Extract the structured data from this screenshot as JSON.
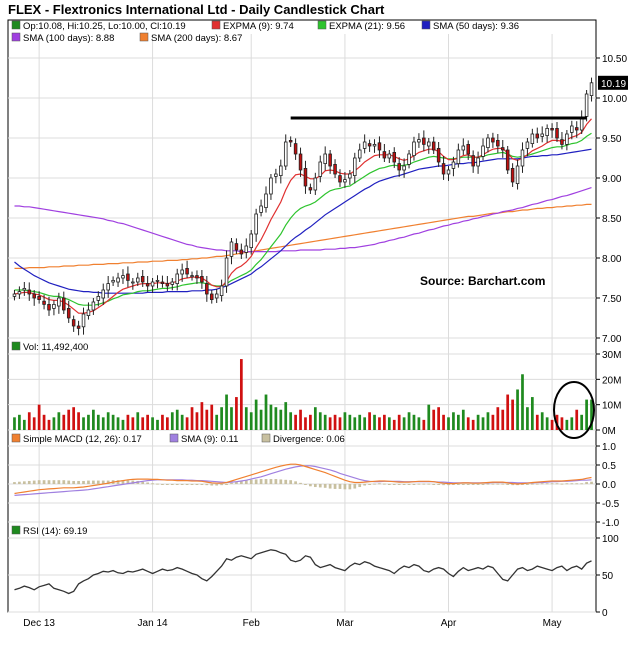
{
  "title": "FLEX - Flextronics International Ltd - Daily Candlestick Chart",
  "source_note": "Source:  Barchart.com",
  "legend_price": [
    {
      "label": "Op:10.08, Hi:10.25, Lo:10.00, Cl:10.19",
      "color": "#1f8a1f"
    },
    {
      "label": "EXPMA (9): 9.74",
      "color": "#e03030"
    },
    {
      "label": "EXPMA (21): 9.56",
      "color": "#2ec42e"
    },
    {
      "label": "SMA (50 days): 9.36",
      "color": "#2020c0"
    },
    {
      "label": "SMA (100 days): 8.88",
      "color": "#a040e0"
    },
    {
      "label": "SMA (200 days): 8.67",
      "color": "#f08030"
    }
  ],
  "legend_volume": {
    "label": "Vol: 11,492,400",
    "color": "#1f8a1f"
  },
  "legend_macd": [
    {
      "label": "Simple MACD (12, 26): 0.17",
      "color": "#f08030"
    },
    {
      "label": "SMA (9): 0.11",
      "color": "#a080e0"
    },
    {
      "label": "Divergence: 0.06",
      "color": "#c8c0a0"
    }
  ],
  "legend_rsi": {
    "label": "RSI (14): 69.19",
    "color": "#1f8a1f"
  },
  "price_ticks": [
    "10.50",
    "10.00",
    "9.50",
    "9.00",
    "8.50",
    "8.00",
    "7.50",
    "7.00"
  ],
  "volume_ticks": [
    "30M",
    "20M",
    "10M",
    "0M"
  ],
  "macd_ticks": [
    "1.0",
    "0.5",
    "0.0",
    "-0.5",
    "-1.0"
  ],
  "rsi_ticks": [
    "100",
    "50",
    "0"
  ],
  "last_price_tag": "10.19",
  "x_labels": [
    "Dec 13",
    "Jan 14",
    "Feb",
    "Mar",
    "Apr",
    "May"
  ],
  "chart_data": {
    "type": "candlestick",
    "n_bars": 118,
    "price_ylim": [
      7.0,
      10.75
    ],
    "resistance_level": 9.75,
    "close": [
      7.55,
      7.58,
      7.62,
      7.55,
      7.5,
      7.48,
      7.42,
      7.35,
      7.42,
      7.5,
      7.35,
      7.25,
      7.15,
      7.12,
      7.3,
      7.35,
      7.45,
      7.52,
      7.6,
      7.68,
      7.72,
      7.75,
      7.78,
      7.72,
      7.7,
      7.75,
      7.7,
      7.65,
      7.7,
      7.72,
      7.68,
      7.65,
      7.7,
      7.8,
      7.85,
      7.8,
      7.78,
      7.75,
      7.7,
      7.55,
      7.48,
      7.55,
      7.65,
      8.0,
      8.2,
      8.1,
      8.05,
      8.15,
      8.3,
      8.55,
      8.65,
      8.8,
      9.0,
      9.05,
      9.15,
      9.45,
      9.45,
      9.3,
      9.1,
      8.9,
      8.85,
      9.0,
      9.2,
      9.3,
      9.15,
      9.05,
      8.95,
      8.98,
      9.05,
      9.25,
      9.35,
      9.45,
      9.4,
      9.42,
      9.35,
      9.25,
      9.3,
      9.2,
      9.1,
      9.15,
      9.3,
      9.45,
      9.48,
      9.42,
      9.45,
      9.35,
      9.2,
      9.05,
      9.1,
      9.2,
      9.35,
      9.4,
      9.3,
      9.15,
      9.25,
      9.4,
      9.5,
      9.45,
      9.4,
      9.35,
      9.1,
      8.95,
      9.15,
      9.35,
      9.45,
      9.55,
      9.5,
      9.55,
      9.62,
      9.6,
      9.5,
      9.42,
      9.55,
      9.65,
      9.6,
      9.75,
      10.05,
      10.19
    ],
    "ema9": [
      7.55,
      7.56,
      7.57,
      7.57,
      7.55,
      7.54,
      7.51,
      7.48,
      7.47,
      7.47,
      7.45,
      7.41,
      7.36,
      7.31,
      7.31,
      7.32,
      7.34,
      7.38,
      7.42,
      7.47,
      7.52,
      7.57,
      7.61,
      7.63,
      7.65,
      7.67,
      7.68,
      7.68,
      7.68,
      7.69,
      7.69,
      7.68,
      7.69,
      7.71,
      7.74,
      7.75,
      7.76,
      7.76,
      7.75,
      7.71,
      7.66,
      7.64,
      7.64,
      7.71,
      7.81,
      7.87,
      7.9,
      7.95,
      8.02,
      8.13,
      8.23,
      8.35,
      8.48,
      8.59,
      8.7,
      8.85,
      8.97,
      9.04,
      9.05,
      9.02,
      8.99,
      8.99,
      9.03,
      9.09,
      9.1,
      9.09,
      9.06,
      9.05,
      9.05,
      9.09,
      9.14,
      9.2,
      9.24,
      9.28,
      9.29,
      9.29,
      9.29,
      9.27,
      9.24,
      9.22,
      9.24,
      9.28,
      9.32,
      9.34,
      9.36,
      9.36,
      9.33,
      9.27,
      9.23,
      9.23,
      9.25,
      9.28,
      9.29,
      9.26,
      9.26,
      9.29,
      9.33,
      9.36,
      9.37,
      9.37,
      9.31,
      9.24,
      9.22,
      9.25,
      9.29,
      9.34,
      9.37,
      9.4,
      9.44,
      9.47,
      9.47,
      9.46,
      9.48,
      9.51,
      9.53,
      9.57,
      9.67,
      9.74
    ],
    "ema21": [
      7.6,
      7.6,
      7.6,
      7.59,
      7.58,
      7.57,
      7.55,
      7.53,
      7.52,
      7.52,
      7.5,
      7.48,
      7.45,
      7.42,
      7.41,
      7.41,
      7.41,
      7.42,
      7.44,
      7.46,
      7.49,
      7.51,
      7.54,
      7.55,
      7.56,
      7.58,
      7.59,
      7.59,
      7.6,
      7.61,
      7.62,
      7.62,
      7.63,
      7.64,
      7.66,
      7.67,
      7.68,
      7.69,
      7.69,
      7.68,
      7.66,
      7.65,
      7.65,
      7.68,
      7.72,
      7.75,
      7.78,
      7.81,
      7.85,
      7.92,
      7.98,
      8.06,
      8.14,
      8.22,
      8.3,
      8.41,
      8.5,
      8.57,
      8.62,
      8.65,
      8.67,
      8.7,
      8.75,
      8.8,
      8.84,
      8.86,
      8.87,
      8.89,
      8.9,
      8.94,
      8.98,
      9.02,
      9.06,
      9.09,
      9.12,
      9.13,
      9.15,
      9.16,
      9.15,
      9.16,
      9.17,
      9.2,
      9.22,
      9.24,
      9.26,
      9.27,
      9.26,
      9.25,
      9.24,
      9.24,
      9.25,
      9.26,
      9.26,
      9.26,
      9.26,
      9.27,
      9.29,
      9.3,
      9.31,
      9.32,
      9.3,
      9.27,
      9.26,
      9.27,
      9.28,
      9.3,
      9.32,
      9.34,
      9.36,
      9.38,
      9.39,
      9.39,
      9.41,
      9.43,
      9.44,
      9.47,
      9.52,
      9.56
    ],
    "sma50": [
      7.95,
      7.9,
      7.86,
      7.82,
      7.78,
      7.75,
      7.72,
      7.69,
      7.67,
      7.65,
      7.63,
      7.61,
      7.6,
      7.59,
      7.58,
      7.58,
      7.57,
      7.57,
      7.56,
      7.56,
      7.56,
      7.56,
      7.56,
      7.56,
      7.56,
      7.56,
      7.56,
      7.57,
      7.57,
      7.57,
      7.57,
      7.58,
      7.58,
      7.58,
      7.58,
      7.58,
      7.59,
      7.59,
      7.59,
      7.6,
      7.6,
      7.61,
      7.63,
      7.65,
      7.68,
      7.71,
      7.74,
      7.77,
      7.8,
      7.85,
      7.89,
      7.94,
      7.99,
      8.04,
      8.09,
      8.15,
      8.21,
      8.26,
      8.3,
      8.35,
      8.39,
      8.44,
      8.49,
      8.54,
      8.58,
      8.62,
      8.66,
      8.7,
      8.74,
      8.78,
      8.82,
      8.86,
      8.89,
      8.93,
      8.96,
      8.98,
      9.0,
      9.02,
      9.03,
      9.05,
      9.07,
      9.09,
      9.11,
      9.12,
      9.13,
      9.14,
      9.15,
      9.15,
      9.16,
      9.17,
      9.18,
      9.18,
      9.19,
      9.19,
      9.2,
      9.21,
      9.22,
      9.23,
      9.24,
      9.24,
      9.24,
      9.24,
      9.24,
      9.25,
      9.26,
      9.27,
      9.27,
      9.28,
      9.28,
      9.29,
      9.29,
      9.3,
      9.31,
      9.32,
      9.33,
      9.34,
      9.35,
      9.36
    ],
    "sma100": [
      8.65,
      8.65,
      8.64,
      8.64,
      8.63,
      8.62,
      8.61,
      8.6,
      8.59,
      8.58,
      8.57,
      8.56,
      8.55,
      8.54,
      8.53,
      8.52,
      8.51,
      8.5,
      8.49,
      8.47,
      8.46,
      8.44,
      8.43,
      8.41,
      8.39,
      8.37,
      8.35,
      8.33,
      8.31,
      8.29,
      8.27,
      8.25,
      8.23,
      8.21,
      8.19,
      8.17,
      8.16,
      8.14,
      8.13,
      8.12,
      8.11,
      8.1,
      8.1,
      8.09,
      8.09,
      8.09,
      8.08,
      8.08,
      8.08,
      8.08,
      8.08,
      8.08,
      8.08,
      8.08,
      8.09,
      8.09,
      8.09,
      8.09,
      8.1,
      8.1,
      8.1,
      8.1,
      8.1,
      8.11,
      8.11,
      8.11,
      8.12,
      8.12,
      8.13,
      8.13,
      8.14,
      8.15,
      8.16,
      8.17,
      8.19,
      8.2,
      8.22,
      8.23,
      8.25,
      8.26,
      8.28,
      8.3,
      8.31,
      8.33,
      8.35,
      8.36,
      8.38,
      8.4,
      8.41,
      8.43,
      8.44,
      8.46,
      8.47,
      8.49,
      8.5,
      8.52,
      8.53,
      8.55,
      8.56,
      8.58,
      8.59,
      8.6,
      8.62,
      8.63,
      8.65,
      8.67,
      8.68,
      8.7,
      8.72,
      8.73,
      8.75,
      8.77,
      8.78,
      8.8,
      8.82,
      8.84,
      8.86,
      8.88
    ],
    "sma200": [
      7.87,
      7.87,
      7.87,
      7.88,
      7.88,
      7.88,
      7.88,
      7.89,
      7.89,
      7.89,
      7.9,
      7.9,
      7.9,
      7.91,
      7.91,
      7.91,
      7.92,
      7.92,
      7.92,
      7.93,
      7.93,
      7.93,
      7.94,
      7.94,
      7.94,
      7.95,
      7.95,
      7.95,
      7.96,
      7.96,
      7.96,
      7.97,
      7.97,
      7.97,
      7.98,
      7.98,
      7.99,
      7.99,
      8.0,
      8.0,
      8.01,
      8.02,
      8.02,
      8.03,
      8.04,
      8.05,
      8.06,
      8.07,
      8.08,
      8.09,
      8.1,
      8.11,
      8.12,
      8.13,
      8.14,
      8.15,
      8.16,
      8.17,
      8.18,
      8.19,
      8.2,
      8.21,
      8.22,
      8.23,
      8.24,
      8.25,
      8.26,
      8.27,
      8.28,
      8.29,
      8.3,
      8.31,
      8.32,
      8.33,
      8.34,
      8.35,
      8.36,
      8.37,
      8.38,
      8.39,
      8.4,
      8.41,
      8.42,
      8.43,
      8.44,
      8.45,
      8.46,
      8.47,
      8.48,
      8.49,
      8.5,
      8.51,
      8.52,
      8.52,
      8.53,
      8.54,
      8.55,
      8.56,
      8.56,
      8.57,
      8.58,
      8.58,
      8.59,
      8.6,
      8.6,
      8.61,
      8.62,
      8.62,
      8.63,
      8.63,
      8.64,
      8.64,
      8.65,
      8.65,
      8.66,
      8.66,
      8.67,
      8.67
    ],
    "volume_ylim": [
      0,
      30
    ],
    "volume_millions": [
      5,
      6,
      4,
      7,
      5,
      10,
      6,
      4,
      5,
      7,
      6,
      8,
      9,
      7,
      5,
      6,
      8,
      6,
      5,
      7,
      6,
      5,
      4,
      6,
      5,
      7,
      5,
      6,
      5,
      4,
      6,
      5,
      7,
      8,
      6,
      5,
      9,
      7,
      11,
      8,
      10,
      6,
      9,
      14,
      9,
      13,
      28,
      9,
      7,
      12,
      8,
      14,
      10,
      9,
      8,
      11,
      7,
      6,
      8,
      5,
      6,
      9,
      7,
      6,
      5,
      6,
      5,
      7,
      6,
      5,
      6,
      5,
      7,
      6,
      5,
      6,
      5,
      4,
      6,
      5,
      7,
      6,
      5,
      4,
      10,
      8,
      9,
      6,
      5,
      7,
      6,
      8,
      5,
      4,
      6,
      5,
      7,
      6,
      9,
      8,
      14,
      12,
      16,
      22,
      9,
      13,
      6,
      7,
      5,
      4,
      6,
      5,
      4,
      5,
      8,
      6,
      12,
      12
    ],
    "macd_ylim": [
      -1.0,
      1.0
    ],
    "macd": [
      -0.25,
      -0.23,
      -0.21,
      -0.19,
      -0.17,
      -0.15,
      -0.14,
      -0.13,
      -0.12,
      -0.11,
      -0.1,
      -0.1,
      -0.1,
      -0.09,
      -0.08,
      -0.06,
      -0.04,
      -0.02,
      0.0,
      0.02,
      0.05,
      0.07,
      0.09,
      0.11,
      0.12,
      0.13,
      0.13,
      0.13,
      0.12,
      0.12,
      0.11,
      0.1,
      0.1,
      0.09,
      0.09,
      0.09,
      0.08,
      0.08,
      0.07,
      0.05,
      0.03,
      0.02,
      0.02,
      0.04,
      0.08,
      0.12,
      0.16,
      0.2,
      0.24,
      0.28,
      0.32,
      0.36,
      0.4,
      0.44,
      0.47,
      0.5,
      0.52,
      0.52,
      0.5,
      0.46,
      0.42,
      0.38,
      0.34,
      0.3,
      0.25,
      0.2,
      0.15,
      0.1,
      0.06,
      0.04,
      0.04,
      0.05,
      0.06,
      0.07,
      0.08,
      0.08,
      0.07,
      0.06,
      0.05,
      0.05,
      0.05,
      0.06,
      0.07,
      0.07,
      0.07,
      0.06,
      0.04,
      0.02,
      0.01,
      0.01,
      0.02,
      0.03,
      0.03,
      0.02,
      0.02,
      0.03,
      0.04,
      0.05,
      0.05,
      0.05,
      0.03,
      0.01,
      0.0,
      0.01,
      0.02,
      0.04,
      0.05,
      0.06,
      0.07,
      0.08,
      0.08,
      0.08,
      0.09,
      0.1,
      0.11,
      0.12,
      0.15,
      0.17
    ],
    "macd_signal": [
      -0.3,
      -0.29,
      -0.28,
      -0.27,
      -0.26,
      -0.25,
      -0.24,
      -0.23,
      -0.22,
      -0.21,
      -0.2,
      -0.19,
      -0.18,
      -0.17,
      -0.16,
      -0.15,
      -0.13,
      -0.11,
      -0.09,
      -0.07,
      -0.05,
      -0.03,
      -0.01,
      0.01,
      0.03,
      0.05,
      0.07,
      0.09,
      0.1,
      0.11,
      0.11,
      0.11,
      0.11,
      0.11,
      0.11,
      0.1,
      0.1,
      0.09,
      0.09,
      0.08,
      0.07,
      0.06,
      0.05,
      0.04,
      0.05,
      0.06,
      0.08,
      0.1,
      0.13,
      0.16,
      0.19,
      0.23,
      0.27,
      0.31,
      0.35,
      0.39,
      0.42,
      0.45,
      0.47,
      0.48,
      0.48,
      0.46,
      0.43,
      0.4,
      0.37,
      0.33,
      0.28,
      0.24,
      0.2,
      0.16,
      0.12,
      0.09,
      0.07,
      0.06,
      0.06,
      0.07,
      0.07,
      0.07,
      0.07,
      0.06,
      0.06,
      0.06,
      0.06,
      0.06,
      0.06,
      0.06,
      0.05,
      0.05,
      0.04,
      0.03,
      0.03,
      0.03,
      0.03,
      0.03,
      0.03,
      0.03,
      0.03,
      0.04,
      0.04,
      0.04,
      0.04,
      0.04,
      0.03,
      0.03,
      0.03,
      0.03,
      0.04,
      0.04,
      0.05,
      0.06,
      0.06,
      0.07,
      0.07,
      0.08,
      0.09,
      0.1,
      0.1,
      0.11
    ],
    "rsi_ylim": [
      0,
      100
    ],
    "rsi": [
      30,
      32,
      35,
      33,
      30,
      34,
      36,
      38,
      32,
      30,
      28,
      25,
      28,
      38,
      42,
      45,
      50,
      52,
      55,
      54,
      56,
      53,
      52,
      55,
      54,
      56,
      58,
      55,
      52,
      55,
      58,
      56,
      57,
      60,
      58,
      55,
      52,
      50,
      45,
      42,
      48,
      55,
      62,
      72,
      70,
      74,
      76,
      74,
      72,
      78,
      80,
      82,
      84,
      83,
      80,
      78,
      70,
      68,
      70,
      76,
      74,
      64,
      60,
      62,
      64,
      60,
      58,
      56,
      62,
      66,
      64,
      68,
      66,
      62,
      60,
      58,
      56,
      52,
      58,
      62,
      60,
      64,
      62,
      56,
      54,
      58,
      60,
      58,
      52,
      48,
      55,
      60,
      56,
      58,
      60,
      58,
      62,
      60,
      52,
      44,
      42,
      50,
      58,
      60,
      56,
      58,
      62,
      60,
      58,
      56,
      60,
      62,
      56,
      60,
      62,
      58,
      66,
      69
    ]
  }
}
